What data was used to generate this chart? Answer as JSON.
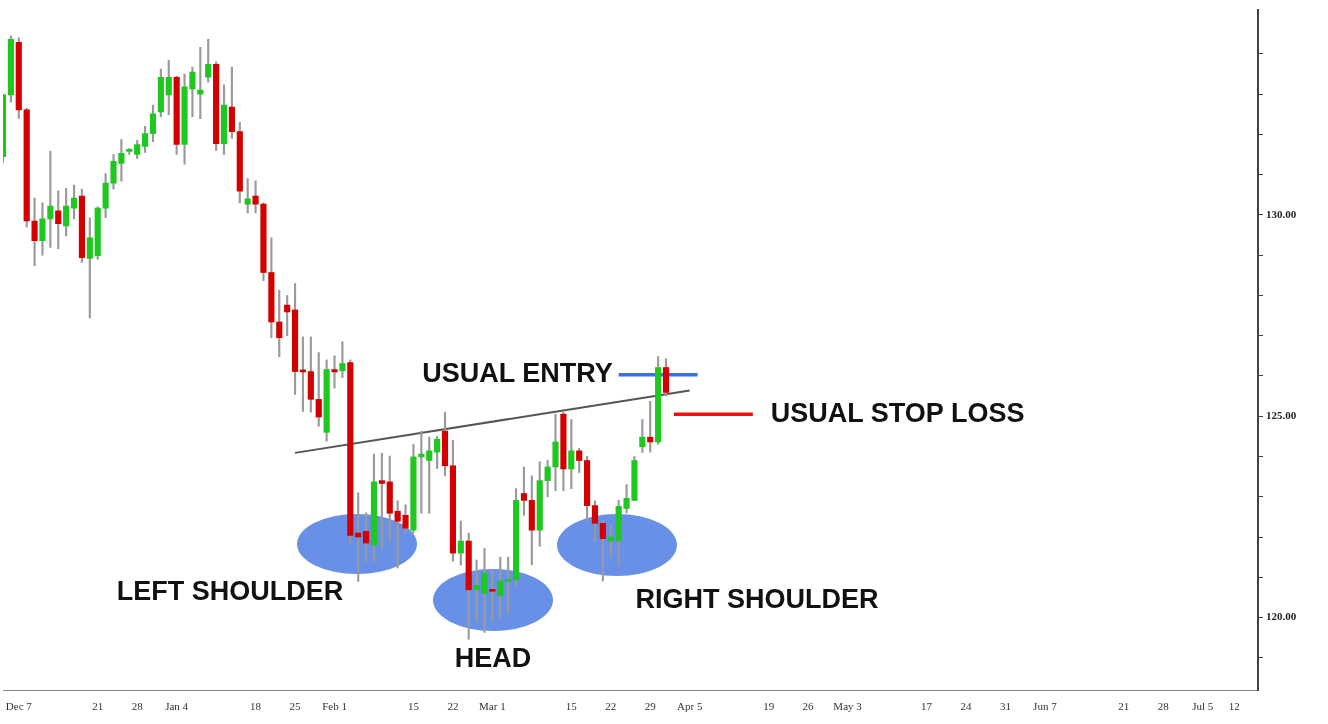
{
  "chart_data": {
    "type": "candlestick",
    "categories": [
      null,
      null,
      "Dec 7",
      null,
      null,
      null,
      null,
      null,
      null,
      null,
      null,
      null,
      "21",
      null,
      null,
      null,
      null,
      "28",
      null,
      null,
      null,
      null,
      "Jan 4",
      null,
      null,
      null,
      null,
      null,
      null,
      null,
      null,
      null,
      "18",
      null,
      null,
      null,
      null,
      "25",
      null,
      null,
      null,
      null,
      "Feb 1",
      null,
      null,
      null,
      null,
      null,
      null,
      null,
      null,
      null,
      "15",
      null,
      null,
      null,
      null,
      "22",
      null,
      null,
      null,
      null,
      "Mar 1",
      null,
      null,
      null,
      null,
      null,
      null,
      null,
      null,
      null,
      "15",
      null,
      null,
      null,
      null,
      "22",
      null,
      null,
      null,
      null,
      "29",
      null,
      null,
      null,
      null,
      "Apr 5",
      null,
      null,
      null,
      null,
      null,
      null,
      null,
      null,
      null,
      "19",
      null,
      null,
      null,
      null,
      "26",
      null,
      null,
      null,
      null,
      "May 3",
      null,
      null,
      null,
      null,
      null,
      null,
      null,
      null,
      null,
      "17",
      null,
      null,
      null,
      null,
      "24",
      null,
      null,
      null,
      null,
      "31",
      null,
      null,
      null,
      null,
      "Jun 7",
      null,
      null,
      null,
      null,
      null,
      null,
      null,
      null,
      null,
      "21",
      null,
      null,
      null,
      null,
      "28",
      null,
      null,
      null,
      null,
      "Jul 5",
      null,
      null,
      null,
      "12",
      null,
      null,
      null
    ],
    "ohlc": [
      [
        131.45,
        133.0,
        131.3,
        132.98
      ],
      [
        132.98,
        134.45,
        132.8,
        134.36
      ],
      [
        134.29,
        134.4,
        132.4,
        132.61
      ],
      [
        132.61,
        132.65,
        129.7,
        129.85
      ],
      [
        129.85,
        130.42,
        128.74,
        129.36
      ],
      [
        129.36,
        130.3,
        129.0,
        129.9
      ],
      [
        129.9,
        131.58,
        129.19,
        130.22
      ],
      [
        130.1,
        130.6,
        129.16,
        129.78
      ],
      [
        129.73,
        130.66,
        129.48,
        130.22
      ],
      [
        130.17,
        130.74,
        129.9,
        130.42
      ],
      [
        130.47,
        130.64,
        128.82,
        128.94
      ],
      [
        128.92,
        129.93,
        127.44,
        129.43
      ],
      [
        128.99,
        130.2,
        128.9,
        130.17
      ],
      [
        130.17,
        131.03,
        129.93,
        130.79
      ],
      [
        130.79,
        131.5,
        130.64,
        131.33
      ],
      [
        131.28,
        131.87,
        130.84,
        131.53
      ],
      [
        131.58,
        131.65,
        131.5,
        131.6
      ],
      [
        131.5,
        131.85,
        131.4,
        131.75
      ],
      [
        131.7,
        132.2,
        131.55,
        132.02
      ],
      [
        132.02,
        132.73,
        131.82,
        132.51
      ],
      [
        132.56,
        133.62,
        132.44,
        133.42
      ],
      [
        132.98,
        133.84,
        132.49,
        133.42
      ],
      [
        133.42,
        133.45,
        131.5,
        131.75
      ],
      [
        131.75,
        133.5,
        131.26,
        133.18
      ],
      [
        133.13,
        133.67,
        132.44,
        133.55
      ],
      [
        133.0,
        134.16,
        132.39,
        133.1
      ],
      [
        133.42,
        134.36,
        133.3,
        133.74
      ],
      [
        133.74,
        133.8,
        131.6,
        131.77
      ],
      [
        131.77,
        133.23,
        131.5,
        132.73
      ],
      [
        132.68,
        133.67,
        131.9,
        132.07
      ],
      [
        132.07,
        132.3,
        130.3,
        130.59
      ],
      [
        130.27,
        130.9,
        130.05,
        130.4
      ],
      [
        130.47,
        130.85,
        130.05,
        130.27
      ],
      [
        130.27,
        130.3,
        128.37,
        128.57
      ],
      [
        128.57,
        129.43,
        126.95,
        127.34
      ],
      [
        127.34,
        128.13,
        126.48,
        126.95
      ],
      [
        127.76,
        128.0,
        127.0,
        127.59
      ],
      [
        127.64,
        128.3,
        125.54,
        126.11
      ],
      [
        126.11,
        126.97,
        125.12,
        126.1
      ],
      [
        126.11,
        126.97,
        125.1,
        125.42
      ],
      [
        125.42,
        126.58,
        124.75,
        124.98
      ],
      [
        124.6,
        126.4,
        124.38,
        126.16
      ],
      [
        126.16,
        126.5,
        125.7,
        126.1
      ],
      [
        126.13,
        126.85,
        125.96,
        126.31
      ],
      [
        126.33,
        126.4,
        121.85,
        122.04
      ],
      [
        122.1,
        123.1,
        120.9,
        122.0
      ],
      [
        122.14,
        122.6,
        121.4,
        121.85
      ],
      [
        121.8,
        124.06,
        121.4,
        123.37
      ],
      [
        123.4,
        124.08,
        121.72,
        123.33
      ],
      [
        123.37,
        124.01,
        121.9,
        122.59
      ],
      [
        122.64,
        122.9,
        121.23,
        122.39
      ],
      [
        122.54,
        122.8,
        122.1,
        122.22
      ],
      [
        122.17,
        124.3,
        122.1,
        123.99
      ],
      [
        123.99,
        124.63,
        122.59,
        124.06
      ],
      [
        123.9,
        124.48,
        122.59,
        124.14
      ],
      [
        124.11,
        124.5,
        123.7,
        124.43
      ],
      [
        124.63,
        125.1,
        123.52,
        123.77
      ],
      [
        123.77,
        124.4,
        121.4,
        121.6
      ],
      [
        121.6,
        122.4,
        121.3,
        121.9
      ],
      [
        121.9,
        122.1,
        119.46,
        120.69
      ],
      [
        120.7,
        121.43,
        119.9,
        120.8
      ],
      [
        120.6,
        121.72,
        119.63,
        121.1
      ],
      [
        120.7,
        121.2,
        119.9,
        120.65
      ],
      [
        120.54,
        121.5,
        120.0,
        120.91
      ],
      [
        120.9,
        121.5,
        120.1,
        120.95
      ],
      [
        120.94,
        123.2,
        120.79,
        122.91
      ],
      [
        123.08,
        123.74,
        122.54,
        122.91
      ],
      [
        122.91,
        123.52,
        121.31,
        122.17
      ],
      [
        122.17,
        123.87,
        121.77,
        123.4
      ],
      [
        123.4,
        123.9,
        123.0,
        123.74
      ],
      [
        123.74,
        125.05,
        123.15,
        124.36
      ],
      [
        125.05,
        125.1,
        123.15,
        123.69
      ],
      [
        123.69,
        124.92,
        123.2,
        124.14
      ],
      [
        124.14,
        124.2,
        123.6,
        123.9
      ],
      [
        123.9,
        124.0,
        122.4,
        122.78
      ],
      [
        122.78,
        122.9,
        121.9,
        122.34
      ],
      [
        122.34,
        122.41,
        120.91,
        121.96
      ],
      [
        121.9,
        122.3,
        121.5,
        122.0
      ],
      [
        121.9,
        122.91,
        121.28,
        122.76
      ],
      [
        122.71,
        123.3,
        122.6,
        122.96
      ],
      [
        122.91,
        124.0,
        122.9,
        123.9
      ],
      [
        124.24,
        124.92,
        124.1,
        124.48
      ],
      [
        124.48,
        125.37,
        124.11,
        124.36
      ],
      [
        124.36,
        126.48,
        124.3,
        126.21
      ],
      [
        126.21,
        126.43,
        125.5,
        125.59
      ],
      null,
      null,
      null,
      null,
      null,
      null,
      null,
      null,
      null,
      null,
      null,
      null,
      null,
      null,
      null,
      null,
      null,
      null,
      null,
      null,
      null,
      null,
      null,
      null,
      null,
      null,
      null,
      null,
      null,
      null,
      null,
      null,
      null,
      null,
      null,
      null,
      null,
      null,
      null,
      null,
      null,
      null,
      null,
      null,
      null,
      null,
      null,
      null,
      null,
      null,
      null,
      null,
      null,
      null,
      null,
      null,
      null,
      null,
      null,
      null,
      null,
      null,
      null,
      null,
      null,
      null,
      null,
      null,
      null,
      null,
      null,
      null,
      null,
      null,
      null
    ],
    "colors": [
      "#1ec81e",
      "#1ec81e",
      "#d40000",
      "#d40000",
      "#d40000",
      "#1ec81e",
      "#1ec81e",
      "#d40000",
      "#1ec81e",
      "#1ec81e",
      "#d40000",
      "#1ec81e",
      "#1ec81e",
      "#1ec81e",
      "#1ec81e",
      "#1ec81e",
      "#1ec81e",
      "#1ec81e",
      "#1ec81e",
      "#1ec81e",
      "#1ec81e",
      "#1ec81e",
      "#d40000",
      "#1ec81e",
      "#1ec81e",
      "#1ec81e",
      "#1ec81e",
      "#d40000",
      "#1ec81e",
      "#d40000",
      "#d40000",
      "#1ec81e",
      "#d40000",
      "#d40000",
      "#d40000",
      "#d40000",
      "#d40000",
      "#d40000",
      "#d40000",
      "#d40000",
      "#d40000",
      "#1ec81e",
      "#d40000",
      "#1ec81e",
      "#d40000",
      "#d40000",
      "#d40000",
      "#1ec81e",
      "#d40000",
      "#d40000",
      "#d40000",
      "#d40000",
      "#1ec81e",
      "#1ec81e",
      "#1ec81e",
      "#1ec81e",
      "#d40000",
      "#d40000",
      "#1ec81e",
      "#d40000",
      "#1ec81e",
      "#1ec81e",
      "#d40000",
      "#1ec81e",
      "#1ec81e",
      "#1ec81e",
      "#d40000",
      "#d40000",
      "#1ec81e",
      "#1ec81e",
      "#1ec81e",
      "#d40000",
      "#1ec81e",
      "#d40000",
      "#d40000",
      "#d40000",
      "#d40000",
      "#1ec81e",
      "#1ec81e",
      "#1ec81e",
      "#1ec81e",
      "#1ec81e",
      "#d40000",
      "#1ec81e",
      "#d40000",
      null,
      null,
      null,
      null,
      null,
      null,
      null,
      null,
      null,
      null,
      null,
      null,
      null,
      null,
      null,
      null,
      null,
      null,
      null,
      null,
      null,
      null,
      null,
      null,
      null,
      null,
      null,
      null,
      null,
      null,
      null,
      null,
      null,
      null,
      null,
      null,
      null,
      null,
      null,
      null,
      null,
      null,
      null,
      null,
      null,
      null,
      null,
      null,
      null,
      null,
      null,
      null,
      null,
      null,
      null,
      null,
      null,
      null,
      null,
      null,
      null,
      null,
      null,
      null,
      null,
      null,
      null,
      null,
      null,
      null,
      null,
      null,
      null,
      null,
      null
    ],
    "series": [
      {
        "type": "line",
        "color": "#555555",
        "values": [
          null,
          null,
          null,
          null,
          null,
          null,
          null,
          null,
          null,
          null,
          null,
          null,
          null,
          null,
          null,
          null,
          null,
          null,
          null,
          null,
          null,
          null,
          null,
          null,
          null,
          null,
          null,
          null,
          null,
          null,
          null,
          null,
          null,
          null,
          null,
          null,
          null,
          124.09,
          null,
          null,
          null,
          null,
          null,
          null,
          null,
          null,
          null,
          null,
          null,
          null,
          null,
          null,
          null,
          null,
          null,
          null,
          null,
          null,
          null,
          null,
          null,
          null,
          null,
          null,
          null,
          null,
          null,
          null,
          null,
          null,
          null,
          null,
          null,
          null,
          null,
          null,
          null,
          null,
          null,
          null,
          null,
          null,
          null,
          null,
          null,
          null,
          null,
          125.64,
          null,
          null,
          null,
          null,
          null,
          null,
          null,
          null,
          null,
          null,
          null,
          null,
          null,
          null,
          null,
          null,
          null,
          null,
          null,
          null,
          null,
          null,
          null,
          null,
          null,
          null,
          null,
          null,
          null,
          null,
          null,
          null,
          null,
          null,
          null,
          null,
          null,
          null,
          null,
          null,
          null,
          null,
          null,
          null,
          null,
          null,
          null,
          null,
          null,
          null,
          null,
          null,
          null,
          null,
          null,
          null,
          null,
          null,
          null,
          null,
          null,
          null,
          null,
          null,
          null,
          null,
          null,
          null,
          null,
          null,
          null,
          null
        ]
      },
      {
        "type": "line",
        "name": "USUAL ENTRY",
        "color": "#3a6fe0",
        "values": [
          null,
          null,
          null,
          null,
          null,
          null,
          null,
          null,
          null,
          null,
          null,
          null,
          null,
          null,
          null,
          null,
          null,
          null,
          null,
          null,
          null,
          null,
          null,
          null,
          null,
          null,
          null,
          null,
          null,
          null,
          null,
          null,
          null,
          null,
          null,
          null,
          null,
          null,
          null,
          null,
          null,
          null,
          null,
          null,
          null,
          null,
          null,
          null,
          null,
          null,
          null,
          null,
          null,
          null,
          null,
          null,
          null,
          null,
          null,
          null,
          null,
          null,
          null,
          null,
          null,
          null,
          null,
          null,
          null,
          null,
          null,
          null,
          null,
          null,
          null,
          null,
          null,
          null,
          126.03,
          null,
          null,
          null,
          null,
          null,
          null,
          null,
          null,
          null,
          126.03,
          null,
          null,
          null,
          null,
          null,
          null,
          null,
          null,
          null,
          null,
          null,
          null,
          null,
          null,
          null,
          null,
          null,
          null,
          null,
          null,
          null,
          null,
          null,
          null,
          null,
          null,
          null,
          null,
          null,
          null,
          null,
          null,
          null,
          null,
          null,
          null,
          null,
          null,
          null,
          null,
          null,
          null,
          null,
          null,
          null,
          null,
          null,
          null,
          null,
          null,
          null,
          null,
          null,
          null,
          null,
          null,
          null,
          null,
          null,
          null,
          null,
          null,
          null,
          null,
          null,
          null,
          null,
          null,
          null,
          null,
          null
        ]
      },
      {
        "type": "line",
        "name": "USUAL STOP LOSS",
        "color": "#ee1111",
        "values": [
          null,
          null,
          null,
          null,
          null,
          null,
          null,
          null,
          null,
          null,
          null,
          null,
          null,
          null,
          null,
          null,
          null,
          null,
          null,
          null,
          null,
          null,
          null,
          null,
          null,
          null,
          null,
          null,
          null,
          null,
          null,
          null,
          null,
          null,
          null,
          null,
          null,
          null,
          null,
          null,
          null,
          null,
          null,
          null,
          null,
          null,
          null,
          null,
          null,
          null,
          null,
          null,
          null,
          null,
          null,
          null,
          null,
          null,
          null,
          null,
          null,
          null,
          null,
          null,
          null,
          null,
          null,
          null,
          null,
          null,
          null,
          null,
          null,
          null,
          null,
          null,
          null,
          null,
          null,
          null,
          null,
          null,
          null,
          null,
          null,
          125.05,
          null,
          null,
          null,
          null,
          null,
          null,
          null,
          null,
          null,
          125.05,
          null,
          null,
          null,
          null,
          null,
          null,
          null,
          null,
          null,
          null,
          null,
          null,
          null,
          null,
          null,
          null,
          null,
          null,
          null,
          null,
          null,
          null,
          null,
          null,
          null,
          null,
          null,
          null,
          null,
          null,
          null,
          null,
          null,
          null,
          null,
          null,
          null,
          null,
          null,
          null,
          null,
          null,
          null,
          null,
          null,
          null,
          null,
          null,
          null,
          null,
          null,
          null,
          null,
          null,
          null,
          null,
          null,
          null,
          null,
          null,
          null,
          null,
          null,
          null
        ]
      }
    ],
    "ylim": [
      118.2,
      135.1
    ],
    "yticks": [
      {
        "value": 119,
        "label": null
      },
      {
        "value": 120,
        "label": "120.00"
      },
      {
        "value": 121,
        "label": null
      },
      {
        "value": 122,
        "label": null
      },
      {
        "value": 123,
        "label": null
      },
      {
        "value": 124,
        "label": null
      },
      {
        "value": 125,
        "label": "125.00"
      },
      {
        "value": 126,
        "label": null
      },
      {
        "value": 127,
        "label": null
      },
      {
        "value": 128,
        "label": null
      },
      {
        "value": 129,
        "label": null
      },
      {
        "value": 130,
        "label": "130.00"
      },
      {
        "value": 131,
        "label": null
      },
      {
        "value": 132,
        "label": null
      },
      {
        "value": 133,
        "label": null
      },
      {
        "value": 134,
        "label": null
      }
    ],
    "annotations": [
      "LEFT SHOULDER",
      "HEAD",
      "RIGHT SHOULDER"
    ]
  }
}
